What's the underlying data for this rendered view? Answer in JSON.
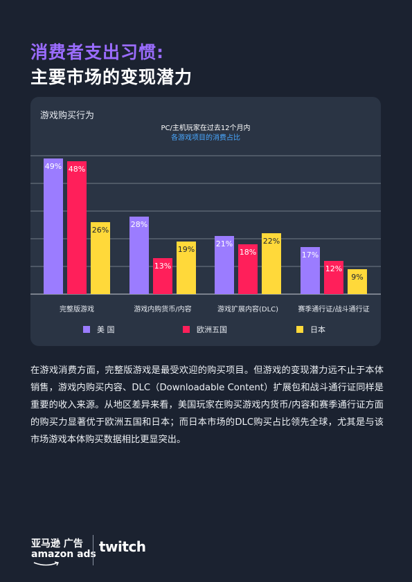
{
  "header": {
    "title_line1": "消费者支出习惯:",
    "title_line2": "主要市场的变现潜力"
  },
  "card": {
    "label": "游戏购买行为"
  },
  "colors": {
    "us": "#9b7cff",
    "eu5": "#ff1f5a",
    "jp": "#ffd93a",
    "subtitle_accent": "#4aa8ff"
  },
  "chart_data": {
    "type": "bar",
    "title": "PC/主机玩家在过去12个月内",
    "subtitle": "各游戏项目的消费占比",
    "categories": [
      "完整版游戏",
      "游戏内购货币/内容",
      "游戏扩展内容(DLC)",
      "赛季通行证/战斗通行证"
    ],
    "series": [
      {
        "name": "美 国",
        "values": [
          49,
          28,
          21,
          17
        ],
        "labels": [
          "49%",
          "28%",
          "21%",
          "17%"
        ]
      },
      {
        "name": "欧洲五国",
        "values": [
          48,
          13,
          18,
          12
        ],
        "labels": [
          "48%",
          "13%",
          "18%",
          "12%"
        ]
      },
      {
        "name": "日本",
        "values": [
          26,
          19,
          22,
          9
        ],
        "labels": [
          "26%",
          "19%",
          "22%",
          "9%"
        ]
      }
    ],
    "ylim": [
      0,
      50
    ],
    "grid": true,
    "legend": "bottom"
  },
  "body": {
    "paragraph": "在游戏消费方面，完整版游戏是最受欢迎的购买项目。但游戏的变现潜力远不止于本体销售，游戏内购买内容、DLC（Downloadable Content）扩展包和战斗通行证同样是重要的收入来源。从地区差异来看，美国玩家在购买游戏内货币/内容和赛季通行证方面的购买力显著优于欧洲五国和日本；而日本市场的DLC购买占比领先全球，尤其是与该市场游戏本体购买数据相比更显突出。"
  },
  "footer": {
    "logo_cn": "亚马逊 广告",
    "logo_ads": "amazon ads",
    "twitch": "twitch"
  }
}
